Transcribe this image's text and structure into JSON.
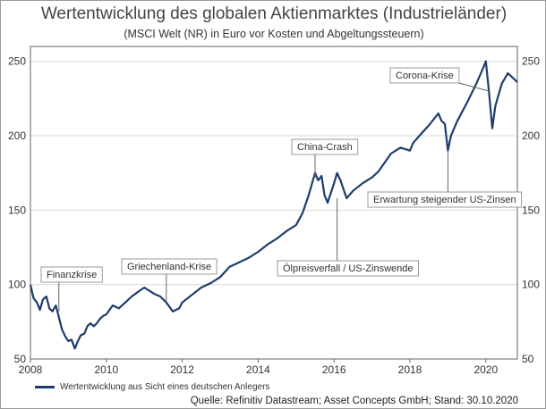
{
  "chart_data": {
    "type": "line",
    "title": "Wertentwicklung des globalen Aktienmarktes (Industrieländer)",
    "subtitle": "(MSCI Welt (NR) in Euro vor Kosten und Abgeltungssteuern)",
    "xlabel": "",
    "ylabel": "",
    "xlim": [
      2008,
      2020.83
    ],
    "ylim": [
      50,
      260
    ],
    "x_ticks": [
      "2008",
      "2010",
      "2012",
      "2014",
      "2016",
      "2018",
      "2020"
    ],
    "y_ticks": [
      "50",
      "100",
      "150",
      "200",
      "250"
    ],
    "grid": true,
    "legend_position": "bottom-left",
    "line_color": "#1f3d6b",
    "series": [
      {
        "name": "Wertentwicklung aus Sicht eines deutschen Anlegers",
        "x": [
          2008.0,
          2008.08,
          2008.17,
          2008.25,
          2008.33,
          2008.42,
          2008.5,
          2008.58,
          2008.67,
          2008.75,
          2008.83,
          2008.92,
          2009.0,
          2009.08,
          2009.17,
          2009.25,
          2009.33,
          2009.42,
          2009.5,
          2009.58,
          2009.67,
          2009.75,
          2009.83,
          2009.92,
          2010.0,
          2010.17,
          2010.33,
          2010.5,
          2010.67,
          2010.83,
          2011.0,
          2011.25,
          2011.42,
          2011.58,
          2011.75,
          2011.92,
          2012.0,
          2012.25,
          2012.5,
          2012.75,
          2013.0,
          2013.25,
          2013.5,
          2013.75,
          2014.0,
          2014.25,
          2014.5,
          2014.75,
          2015.0,
          2015.17,
          2015.33,
          2015.5,
          2015.58,
          2015.67,
          2015.75,
          2015.83,
          2016.0,
          2016.08,
          2016.17,
          2016.33,
          2016.5,
          2016.75,
          2017.0,
          2017.17,
          2017.5,
          2017.75,
          2018.0,
          2018.08,
          2018.25,
          2018.5,
          2018.75,
          2018.83,
          2018.92,
          2019.0,
          2019.08,
          2019.25,
          2019.5,
          2019.75,
          2019.92,
          2020.0,
          2020.08,
          2020.17,
          2020.25,
          2020.42,
          2020.58,
          2020.75,
          2020.83
        ],
        "values": [
          100,
          91,
          88,
          83,
          90,
          92,
          84,
          82,
          86,
          78,
          70,
          65,
          62,
          63,
          57,
          62,
          66,
          67,
          72,
          74,
          72,
          74,
          77,
          79,
          80,
          86,
          84,
          88,
          92,
          95,
          98,
          94,
          92,
          88,
          82,
          84,
          88,
          93,
          98,
          101,
          105,
          112,
          115,
          118,
          122,
          127,
          131,
          136,
          140,
          148,
          160,
          175,
          170,
          173,
          160,
          155,
          168,
          175,
          170,
          158,
          163,
          168,
          172,
          176,
          188,
          192,
          190,
          195,
          200,
          207,
          215,
          210,
          208,
          190,
          200,
          210,
          222,
          235,
          245,
          250,
          230,
          205,
          220,
          235,
          242,
          238,
          236
        ]
      }
    ],
    "annotations": [
      {
        "text": "Finanzkrise",
        "x": 2008.75,
        "y": 82
      },
      {
        "text": "Griechenland-Krise",
        "x": 2011.58,
        "y": 89
      },
      {
        "text": "China-Crash",
        "x": 2015.5,
        "y": 172
      },
      {
        "text": "Ölpreisverfall / US-Zinswende",
        "x": 2016.08,
        "y": 158
      },
      {
        "text": "Erwartung steigender US-Zinsen",
        "x": 2019.0,
        "y": 190
      },
      {
        "text": "Corona-Krise",
        "x": 2020.08,
        "y": 230
      }
    ],
    "source": "Quelle: Refinitiv Datastream; Asset Concepts GmbH; Stand: 30.10.2020"
  }
}
